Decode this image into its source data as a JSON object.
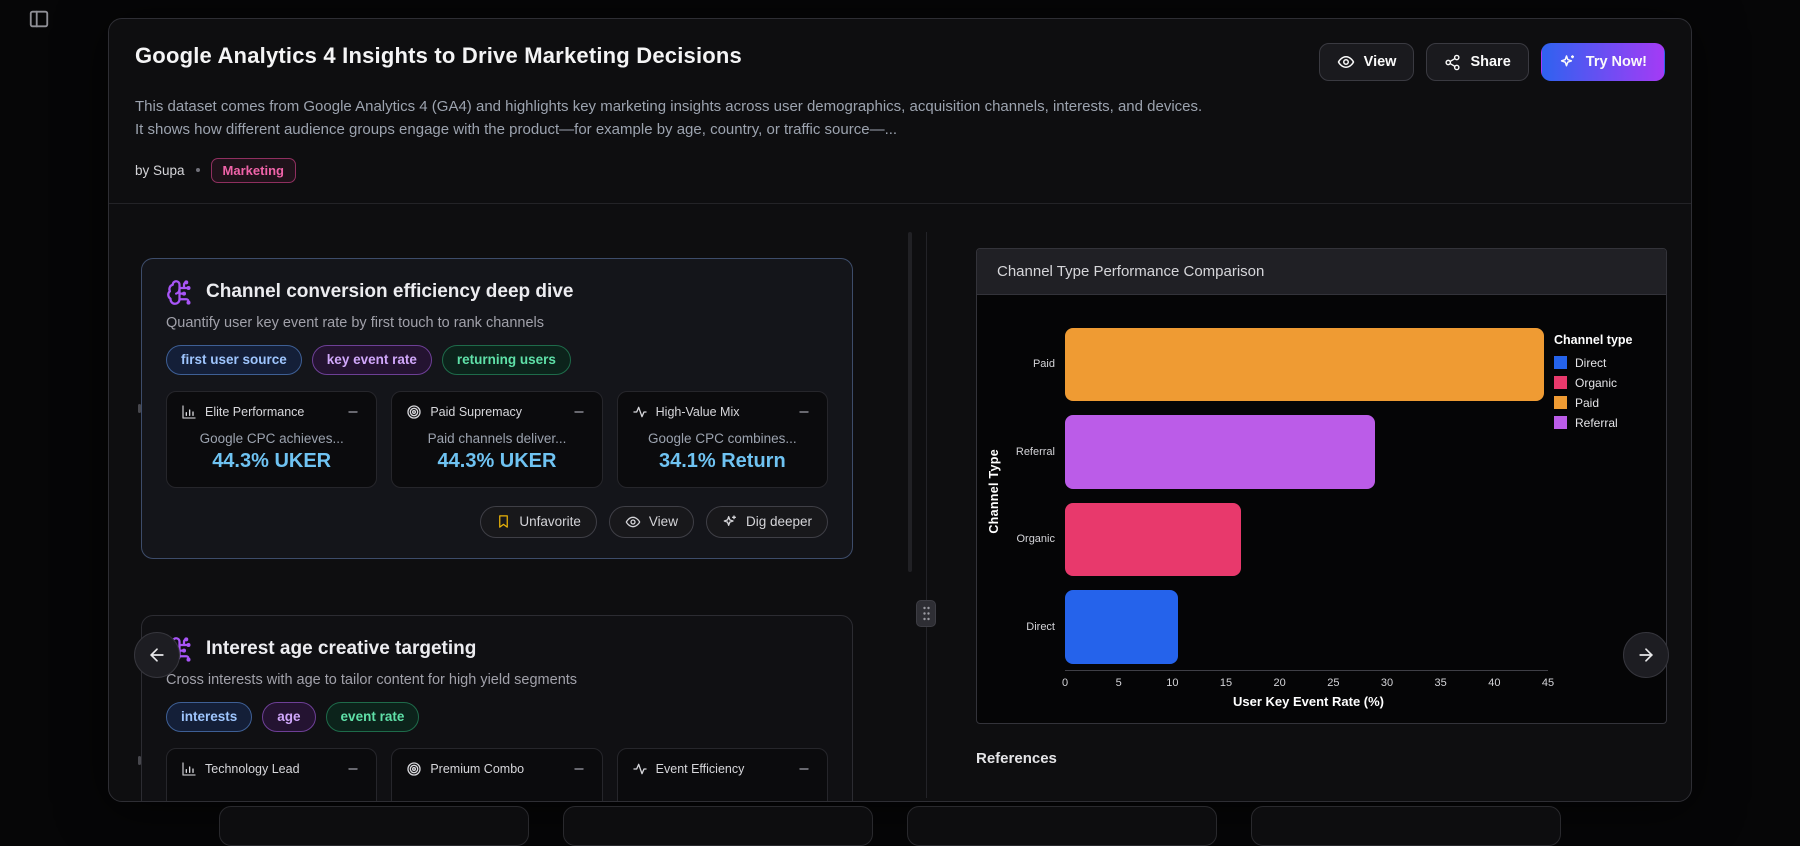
{
  "header": {
    "title": "Google Analytics 4 Insights to Drive Marketing Decisions",
    "description": "This dataset comes from Google Analytics 4 (GA4) and highlights key marketing insights across user demographics, acquisition channels, interests, and devices. It shows how different audience groups engage with the product—for example by age, country, or traffic source—...",
    "author": "by Supa",
    "category_badge": "Marketing",
    "actions": {
      "view": "View",
      "share": "Share",
      "try_now": "Try Now!"
    }
  },
  "insight_cards": [
    {
      "featured": true,
      "title": "Channel conversion efficiency deep dive",
      "subtitle": "Quantify user key event rate by first touch to rank channels",
      "tags": [
        {
          "label": "first user source",
          "color": "blue"
        },
        {
          "label": "key event rate",
          "color": "purple"
        },
        {
          "label": "returning users",
          "color": "green"
        }
      ],
      "metrics": [
        {
          "icon": "bar-chart",
          "name": "Elite Performance",
          "description": "Google CPC achieves...",
          "value": "44.3% UKER"
        },
        {
          "icon": "target",
          "name": "Paid Supremacy",
          "description": "Paid channels deliver...",
          "value": "44.3% UKER"
        },
        {
          "icon": "activity",
          "name": "High-Value Mix",
          "description": "Google CPC combines...",
          "value": "34.1% Return"
        }
      ],
      "actions": [
        {
          "icon": "bookmark",
          "label": "Unfavorite"
        },
        {
          "icon": "eye",
          "label": "View"
        },
        {
          "icon": "sparkle",
          "label": "Dig deeper"
        }
      ]
    },
    {
      "featured": false,
      "title": "Interest age creative targeting",
      "subtitle": "Cross interests with age to tailor content for high yield segments",
      "tags": [
        {
          "label": "interests",
          "color": "blue"
        },
        {
          "label": "age",
          "color": "purple"
        },
        {
          "label": "event rate",
          "color": "green"
        }
      ],
      "metrics": [
        {
          "icon": "bar-chart",
          "name": "Technology Lead"
        },
        {
          "icon": "target",
          "name": "Premium Combo"
        },
        {
          "icon": "activity",
          "name": "Event Efficiency"
        }
      ],
      "actions": []
    }
  ],
  "right_panel": {
    "references_heading": "References"
  },
  "chart_data": {
    "type": "bar",
    "orientation": "horizontal",
    "title": "Channel Type Performance Comparison",
    "categories": [
      "Paid",
      "Referral",
      "Organic",
      "Direct"
    ],
    "values": [
      44.3,
      28.6,
      16.3,
      10.4
    ],
    "bar_colors": [
      "#ef9b33",
      "#bb5ce8",
      "#e8396c",
      "#2563eb"
    ],
    "xlabel": "User Key Event Rate (%)",
    "ylabel": "Channel Type",
    "xlim": [
      0,
      45
    ],
    "xticks": [
      0,
      5,
      10,
      15,
      20,
      25,
      30,
      35,
      40,
      45
    ],
    "grid": false,
    "legend": {
      "title": "Channel type",
      "position": "right",
      "entries": [
        {
          "label": "Direct",
          "color": "#2563eb"
        },
        {
          "label": "Organic",
          "color": "#e8396c"
        },
        {
          "label": "Paid",
          "color": "#ef9b33"
        },
        {
          "label": "Referral",
          "color": "#bb5ce8"
        }
      ]
    }
  },
  "colors": {
    "accent_gradient_start": "#2f62f0",
    "accent_gradient_end": "#a43bf5",
    "metric_value": "#6fc3f2",
    "favorite_icon": "#eab308",
    "brain_icon": "#a855f7"
  }
}
